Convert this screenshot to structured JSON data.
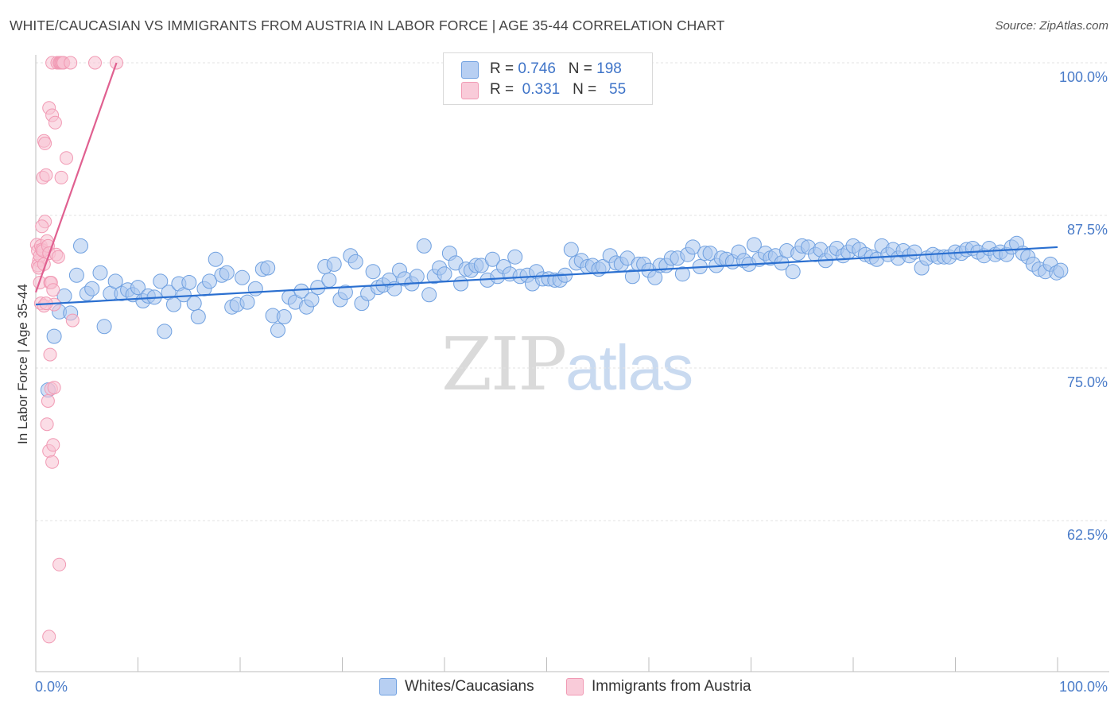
{
  "title": "WHITE/CAUCASIAN VS IMMIGRANTS FROM AUSTRIA IN LABOR FORCE | AGE 35-44 CORRELATION CHART",
  "source": "Source: ZipAtlas.com",
  "watermark": {
    "zip": "ZIP",
    "atlas": "atlas"
  },
  "legend_top": [
    {
      "r_label": "R =",
      "r_value": "0.746",
      "n_label": "N =",
      "n_value": "198"
    },
    {
      "r_label": "R =",
      "r_value": "0.331",
      "n_label": "N =",
      "n_value": "55"
    }
  ],
  "legend_bottom": [
    "Whites/Caucasians",
    "Immigrants from Austria"
  ],
  "chart_data": {
    "type": "scatter",
    "ylabel": "In Labor Force | Age 35-44",
    "xlim": [
      0,
      100
    ],
    "ylim": [
      50,
      102
    ],
    "x_tick_labels": [
      {
        "value": 0,
        "label": "0.0%"
      },
      {
        "value": 100,
        "label": "100.0%"
      }
    ],
    "y_tick_labels": [
      {
        "value": 100,
        "label": "100.0%"
      },
      {
        "value": 87.5,
        "label": "87.5%"
      },
      {
        "value": 75,
        "label": "75.0%"
      },
      {
        "value": 62.5,
        "label": "62.5%"
      }
    ],
    "grid": true,
    "series": [
      {
        "name": "Whites/Caucasians",
        "color": "#6fa0e0",
        "fill": "#a9c6ee",
        "trend_color": "#2a6fd0",
        "trend": [
          [
            0,
            80.2
          ],
          [
            100,
            84.9
          ]
        ],
        "points": [
          [
            1.2,
            73.2
          ],
          [
            1.8,
            77.6
          ],
          [
            2.3,
            79.6
          ],
          [
            2.8,
            80.9
          ],
          [
            3.4,
            79.5
          ],
          [
            4,
            82.6
          ],
          [
            4.4,
            85
          ],
          [
            5,
            81.1
          ],
          [
            5.5,
            81.5
          ],
          [
            6.3,
            82.8
          ],
          [
            6.7,
            78.4
          ],
          [
            7.3,
            81.1
          ],
          [
            7.8,
            82.1
          ],
          [
            8.4,
            81.1
          ],
          [
            9,
            81.4
          ],
          [
            9.5,
            81
          ],
          [
            10,
            81.6
          ],
          [
            10.5,
            80.5
          ],
          [
            11,
            80.9
          ],
          [
            11.6,
            80.8
          ],
          [
            12.2,
            82.1
          ],
          [
            12.6,
            78
          ],
          [
            13,
            81.2
          ],
          [
            13.5,
            80.2
          ],
          [
            14,
            81.9
          ],
          [
            14.5,
            81
          ],
          [
            15,
            82
          ],
          [
            15.5,
            80.3
          ],
          [
            15.9,
            79.2
          ],
          [
            16.5,
            81.5
          ],
          [
            17,
            82.1
          ],
          [
            17.6,
            83.9
          ],
          [
            18.2,
            82.6
          ],
          [
            18.7,
            82.8
          ],
          [
            19.2,
            80
          ],
          [
            19.7,
            80.2
          ],
          [
            20.2,
            82.4
          ],
          [
            20.7,
            80.4
          ],
          [
            21.5,
            81.5
          ],
          [
            22.2,
            83.1
          ],
          [
            22.7,
            83.2
          ],
          [
            23.2,
            79.3
          ],
          [
            23.7,
            78.1
          ],
          [
            24.3,
            79.2
          ],
          [
            24.8,
            80.8
          ],
          [
            25.4,
            80.4
          ],
          [
            26,
            81.3
          ],
          [
            26.5,
            80
          ],
          [
            27,
            80.6
          ],
          [
            27.6,
            81.6
          ],
          [
            28.3,
            83.3
          ],
          [
            28.7,
            82.2
          ],
          [
            29.2,
            83.5
          ],
          [
            29.8,
            80.6
          ],
          [
            30.3,
            81.2
          ],
          [
            30.8,
            84.2
          ],
          [
            31.3,
            83.7
          ],
          [
            31.9,
            80.3
          ],
          [
            32.5,
            81.1
          ],
          [
            33,
            82.9
          ],
          [
            33.5,
            81.6
          ],
          [
            34,
            81.8
          ],
          [
            34.6,
            82.2
          ],
          [
            35.1,
            81.5
          ],
          [
            35.6,
            83
          ],
          [
            36.1,
            82.3
          ],
          [
            36.8,
            81.9
          ],
          [
            37.3,
            82.5
          ],
          [
            38,
            85
          ],
          [
            38.5,
            81
          ],
          [
            39,
            82.5
          ],
          [
            39.5,
            83.2
          ],
          [
            40,
            82.7
          ],
          [
            40.5,
            84.4
          ],
          [
            41.1,
            83.6
          ],
          [
            41.6,
            81.9
          ],
          [
            42.1,
            83.1
          ],
          [
            42.6,
            83
          ],
          [
            43.1,
            83.4
          ],
          [
            43.6,
            83.4
          ],
          [
            44.2,
            82.2
          ],
          [
            44.7,
            83.9
          ],
          [
            45.2,
            82.5
          ],
          [
            45.8,
            83.3
          ],
          [
            46.4,
            82.7
          ],
          [
            46.9,
            84.1
          ],
          [
            47.4,
            82.5
          ],
          [
            48.1,
            82.6
          ],
          [
            48.6,
            81.9
          ],
          [
            49,
            82.9
          ],
          [
            49.6,
            82.3
          ],
          [
            50.2,
            82.3
          ],
          [
            50.8,
            82.2
          ],
          [
            51.3,
            82.2
          ],
          [
            51.8,
            82.6
          ],
          [
            52.4,
            84.7
          ],
          [
            52.9,
            83.6
          ],
          [
            53.4,
            83.8
          ],
          [
            54,
            83.3
          ],
          [
            54.5,
            83.4
          ],
          [
            55.1,
            83.1
          ],
          [
            55.5,
            83.3
          ],
          [
            56.2,
            84.2
          ],
          [
            56.8,
            83.6
          ],
          [
            57.3,
            83.5
          ],
          [
            57.9,
            84
          ],
          [
            58.4,
            82.5
          ],
          [
            59,
            83.5
          ],
          [
            59.5,
            83.5
          ],
          [
            60,
            83
          ],
          [
            60.6,
            82.4
          ],
          [
            61.1,
            83.4
          ],
          [
            61.7,
            83.4
          ],
          [
            62.2,
            84
          ],
          [
            62.8,
            84
          ],
          [
            63.3,
            82.7
          ],
          [
            63.8,
            84.3
          ],
          [
            64.3,
            84.9
          ],
          [
            65,
            83.3
          ],
          [
            65.5,
            84.4
          ],
          [
            66,
            84.4
          ],
          [
            66.6,
            83.4
          ],
          [
            67.1,
            84
          ],
          [
            67.6,
            83.9
          ],
          [
            68.2,
            83.7
          ],
          [
            68.8,
            84.5
          ],
          [
            69.3,
            83.8
          ],
          [
            69.8,
            83.5
          ],
          [
            70.3,
            85.1
          ],
          [
            70.8,
            83.9
          ],
          [
            71.4,
            84.4
          ],
          [
            71.9,
            84
          ],
          [
            72.4,
            84.2
          ],
          [
            73,
            83.6
          ],
          [
            73.5,
            84.6
          ],
          [
            74.1,
            82.9
          ],
          [
            74.6,
            84.4
          ],
          [
            75,
            85
          ],
          [
            75.6,
            84.9
          ],
          [
            76.3,
            84.3
          ],
          [
            76.8,
            84.7
          ],
          [
            77.3,
            83.8
          ],
          [
            77.9,
            84.4
          ],
          [
            78.4,
            84.8
          ],
          [
            79,
            84.2
          ],
          [
            79.5,
            84.5
          ],
          [
            80,
            85
          ],
          [
            80.6,
            84.7
          ],
          [
            81.2,
            84.3
          ],
          [
            81.8,
            84.1
          ],
          [
            82.3,
            83.9
          ],
          [
            82.8,
            85
          ],
          [
            83.4,
            84.3
          ],
          [
            83.9,
            84.7
          ],
          [
            84.4,
            84
          ],
          [
            84.9,
            84.6
          ],
          [
            85.5,
            84.2
          ],
          [
            86,
            84.5
          ],
          [
            86.7,
            83.2
          ],
          [
            87.2,
            84
          ],
          [
            87.8,
            84.3
          ],
          [
            88.3,
            84.1
          ],
          [
            88.9,
            84.1
          ],
          [
            89.4,
            84.1
          ],
          [
            90,
            84.5
          ],
          [
            90.6,
            84.4
          ],
          [
            91.1,
            84.7
          ],
          [
            91.7,
            84.8
          ],
          [
            92.2,
            84.5
          ],
          [
            92.8,
            84.2
          ],
          [
            93.3,
            84.8
          ],
          [
            93.9,
            84.3
          ],
          [
            94.4,
            84.5
          ],
          [
            95,
            84.3
          ],
          [
            95.5,
            84.9
          ],
          [
            96,
            85.2
          ],
          [
            96.6,
            84.4
          ],
          [
            97.1,
            84.1
          ],
          [
            97.6,
            83.5
          ],
          [
            98.2,
            83.1
          ],
          [
            98.8,
            82.9
          ],
          [
            99.3,
            83.5
          ],
          [
            99.9,
            82.8
          ],
          [
            100.3,
            83
          ]
        ]
      },
      {
        "name": "Immigrants from Austria",
        "color": "#f19ab4",
        "fill": "#f7c1d2",
        "trend_color": "#e06090",
        "trend": [
          [
            0,
            81.2
          ],
          [
            7.9,
            100
          ]
        ],
        "points": [
          [
            0.1,
            85.1
          ],
          [
            0.2,
            84.6
          ],
          [
            0.3,
            83.8
          ],
          [
            0.2,
            83.4
          ],
          [
            0.4,
            84.2
          ],
          [
            0.5,
            85
          ],
          [
            0.3,
            83.2
          ],
          [
            0.6,
            84.7
          ],
          [
            0.7,
            84.6
          ],
          [
            0.4,
            82
          ],
          [
            0.8,
            83.5
          ],
          [
            0.9,
            87
          ],
          [
            0.6,
            86.6
          ],
          [
            0.7,
            90.6
          ],
          [
            0.8,
            93.6
          ],
          [
            0.9,
            93.4
          ],
          [
            1,
            90.8
          ],
          [
            1.1,
            85.4
          ],
          [
            1.2,
            85
          ],
          [
            1.3,
            84.4
          ],
          [
            1.3,
            96.3
          ],
          [
            1.4,
            82
          ],
          [
            1.5,
            82
          ],
          [
            1.6,
            95.7
          ],
          [
            1.7,
            81.4
          ],
          [
            1.8,
            80.2
          ],
          [
            1.9,
            95.1
          ],
          [
            2,
            84.3
          ],
          [
            2.2,
            84.1
          ],
          [
            2.5,
            90.6
          ],
          [
            3,
            92.2
          ],
          [
            3.6,
            78.9
          ],
          [
            0.5,
            80.3
          ],
          [
            0.8,
            80.1
          ],
          [
            1,
            80.3
          ],
          [
            1.2,
            72.3
          ],
          [
            1.1,
            70.4
          ],
          [
            1.3,
            68.2
          ],
          [
            1.4,
            76.1
          ],
          [
            1.5,
            73.3
          ],
          [
            1.6,
            67.3
          ],
          [
            1.7,
            68.7
          ],
          [
            1.8,
            73.4
          ],
          [
            2.3,
            58.9
          ],
          [
            1.3,
            53
          ],
          [
            1.6,
            100
          ],
          [
            2.1,
            100
          ],
          [
            2.3,
            100
          ],
          [
            2.4,
            100
          ],
          [
            2.5,
            100
          ],
          [
            2.6,
            100
          ],
          [
            2.7,
            100
          ],
          [
            3.4,
            100
          ],
          [
            5.8,
            100
          ],
          [
            7.9,
            100
          ]
        ]
      }
    ]
  }
}
